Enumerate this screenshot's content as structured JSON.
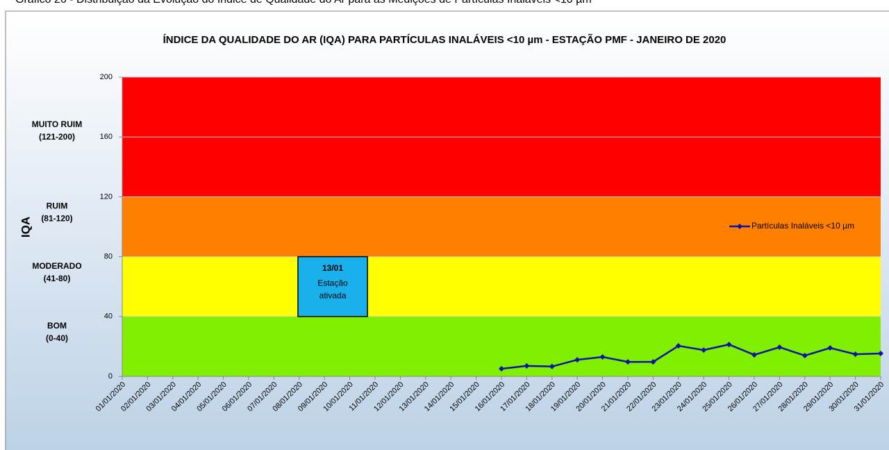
{
  "caption": "Gráfico 26 - Distribuição da Evolução do Índice de Qualidade do Ar para as Medições de Partículas Inaláveis <10 µm",
  "chart_data": {
    "type": "line",
    "title": "ÍNDICE DA QUALIDADE  DO AR (IQA) PARA PARTÍCULAS  INALÁVEIS  <10 µm - ESTAÇÃO  PMF - JANEIRO DE 2020",
    "y_label": "IQA",
    "categories": [
      "01/01/2020",
      "02/01/2020",
      "03/01/2020",
      "04/01/2020",
      "05/01/2020",
      "06/01/2020",
      "07/01/2020",
      "08/01/2020",
      "09/01/2020",
      "10/01/2020",
      "11/01/2020",
      "12/01/2020",
      "13/01/2020",
      "14/01/2020",
      "15/01/2020",
      "16/01/2020",
      "17/01/2020",
      "18/01/2020",
      "19/01/2020",
      "20/01/2020",
      "21/01/2020",
      "22/01/2020",
      "23/01/2020",
      "24/01/2020",
      "25/01/2020",
      "26/01/2020",
      "27/01/2020",
      "28/01/2020",
      "29/01/2020",
      "30/01/2020",
      "31/01/2020"
    ],
    "series": [
      {
        "name": "Partículas Inaláveis <10 µm",
        "color": "#0a12a8",
        "values": [
          null,
          null,
          null,
          null,
          null,
          null,
          null,
          null,
          null,
          null,
          null,
          null,
          null,
          null,
          null,
          5.1,
          7,
          6.6,
          11.1,
          13,
          9.7,
          9.7,
          20.4,
          17.6,
          21.3,
          14.4,
          19.5,
          13.9,
          19,
          14.8,
          15.3
        ]
      }
    ],
    "bands": [
      {
        "name": "BOM",
        "range": "(0-40)",
        "from": 0,
        "to": 40,
        "color": "#80f000"
      },
      {
        "name": "MODERADO",
        "range": "(41-80)",
        "from": 40,
        "to": 80,
        "color": "#ffff00"
      },
      {
        "name": "RUIM",
        "range": "(81-120)",
        "from": 80,
        "to": 120,
        "color": "#ff8000"
      },
      {
        "name": "MUITO RUIM",
        "range": "(121-200)",
        "from": 120,
        "to": 200,
        "color": "#ff0000"
      }
    ],
    "annotation": {
      "date": "13/01",
      "text": [
        "Estação",
        "ativada"
      ]
    },
    "ylim": [
      0,
      200
    ],
    "yticks": [
      0,
      40,
      80,
      120,
      160,
      200
    ],
    "grid": true,
    "legend": "right"
  }
}
